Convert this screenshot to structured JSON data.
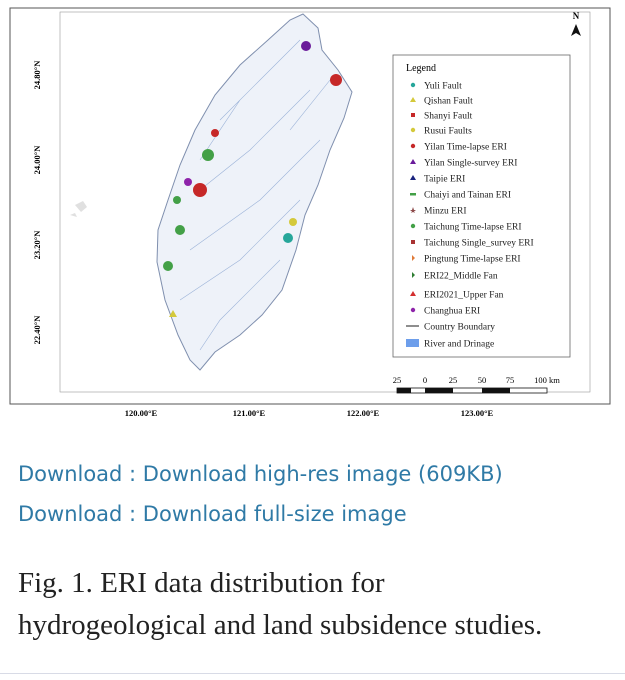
{
  "figure": {
    "north_label": "N",
    "latitude_labels": [
      "24.80°N",
      "24.00°N",
      "23.20°N",
      "22.40°N"
    ],
    "longitude_labels": [
      "120.00°E",
      "121.00°E",
      "122.00°E",
      "123.00°E"
    ],
    "legend": {
      "title": "Legend",
      "items": [
        "Yuli Fault",
        "Qishan Fault",
        "Shanyi Fault",
        "Rusui Faults",
        "Yilan Time-lapse ERI",
        "Yilan Single-survey ERI",
        "Taipie ERI",
        "Chaiyi and Tainan ERI",
        "Minzu ERI",
        "Taichung Time-lapse ERI",
        "Taichung Single_survey ERI",
        "Pingtung Time-lapse ERI",
        "ERI22_Middle Fan",
        "ERI2021_Upper Fan",
        "Changhua ERI",
        "Country Boundary",
        "River and Drinage"
      ]
    },
    "scale_labels": [
      "25",
      "0",
      "25",
      "50",
      "75",
      "100 km"
    ]
  },
  "links": [
    "Download : Download high-res image (609KB)",
    "Download : Download full-size image"
  ],
  "caption": "Fig. 1. ERI data distribution for hydrogeological and land subsidence studies."
}
